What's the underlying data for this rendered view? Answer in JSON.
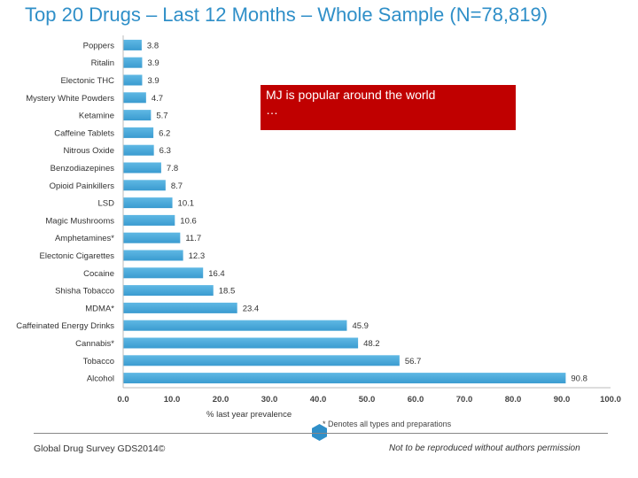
{
  "title": "Top 20 Drugs – Last 12 Months – Whole Sample (N=78,819)",
  "callout": {
    "line1": "MJ is popular around the world",
    "line2": "…",
    "color": "#c00000"
  },
  "footnote": "* Denotes all types and preparations",
  "footer": {
    "left": "Global Drug Survey GDS2014©",
    "right": "Not to be reproduced without authors permission"
  },
  "colors": {
    "title": "#2f8fc8",
    "bar": "#5fb8e4",
    "bar_dark": "#3a9bd0"
  },
  "icons": [
    "hexagon-icon"
  ],
  "chart_data": {
    "type": "bar",
    "orientation": "horizontal",
    "categories": [
      "Poppers",
      "Ritalin",
      "Electonic THC",
      "Mystery White Powders",
      "Ketamine",
      "Caffeine Tablets",
      "Nitrous Oxide",
      "Benzodiazepines",
      "Opioid Painkillers",
      "LSD",
      "Magic Mushrooms",
      "Amphetamines*",
      "Electonic Cigarettes",
      "Cocaine",
      "Shisha Tobacco",
      "MDMA*",
      "Caffeinated Energy Drinks",
      "Cannabis*",
      "Tobacco",
      "Alcohol"
    ],
    "values": [
      3.8,
      3.9,
      3.9,
      4.7,
      5.7,
      6.2,
      6.3,
      7.8,
      8.7,
      10.1,
      10.6,
      11.7,
      12.3,
      16.4,
      18.5,
      23.4,
      45.9,
      48.2,
      56.7,
      90.8
    ],
    "value_labels": [
      "3.8",
      "3.9",
      "3.9",
      "4.7",
      "5.7",
      "6.2",
      "6.3",
      "7.8",
      "8.7",
      "10.1",
      "10.6",
      "11.7",
      "12.3",
      "16.4",
      "18.5",
      "23.4",
      "45.9",
      "48.2",
      "56.7",
      "90.8"
    ],
    "xticks": [
      "0.0",
      "10.0",
      "20.0",
      "30.0",
      "40.0",
      "50.0",
      "60.0",
      "70.0",
      "80.0",
      "90.0",
      "100.0"
    ],
    "xlim": [
      0,
      100
    ],
    "xlabel": "% last year prevalence",
    "ylabel": "",
    "grid": false,
    "legend": "none"
  }
}
